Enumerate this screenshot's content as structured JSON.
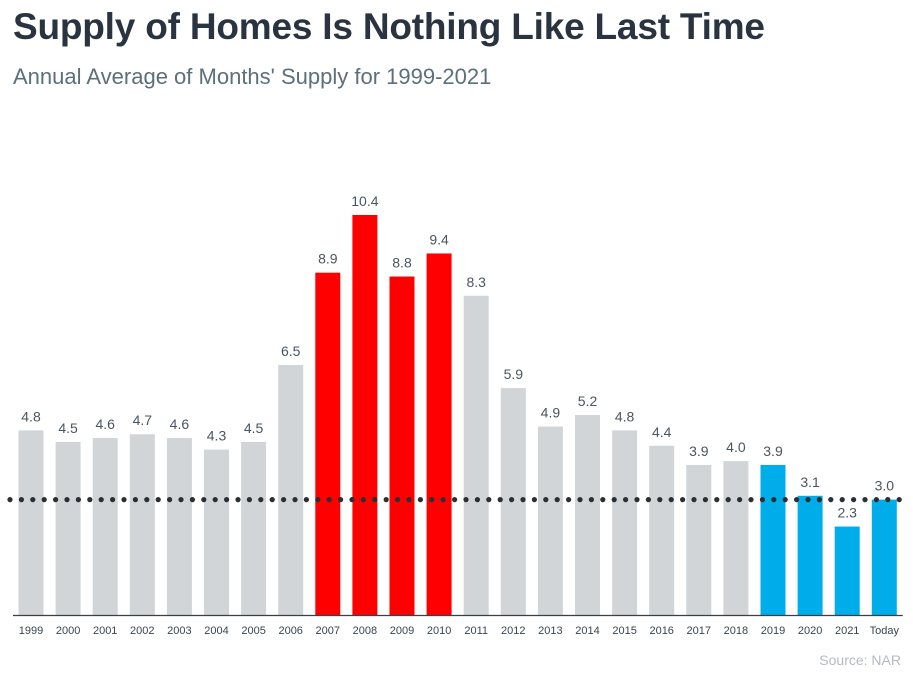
{
  "title": "Supply of Homes Is Nothing Like Last Time",
  "subtitle": "Annual Average of Months' Supply for 1999-2021",
  "source": "Source: NAR",
  "colors": {
    "default": "#d1d5d8",
    "peak": "#ff0000",
    "recent": "#00adeb",
    "reference_line": "#2a2f33",
    "axis": "#3a3f44"
  },
  "chart_data": {
    "type": "bar",
    "title": "Supply of Homes Is Nothing Like Last Time",
    "subtitle": "Annual Average of Months' Supply for 1999-2021",
    "categories": [
      "1999",
      "2000",
      "2001",
      "2002",
      "2003",
      "2004",
      "2005",
      "2006",
      "2007",
      "2008",
      "2009",
      "2010",
      "2011",
      "2012",
      "2013",
      "2014",
      "2015",
      "2016",
      "2017",
      "2018",
      "2019",
      "2020",
      "2021",
      "Today"
    ],
    "values": [
      4.8,
      4.5,
      4.6,
      4.7,
      4.6,
      4.3,
      4.5,
      6.5,
      8.9,
      10.4,
      8.8,
      9.4,
      8.3,
      5.9,
      4.9,
      5.2,
      4.8,
      4.4,
      3.9,
      4.0,
      3.9,
      3.1,
      2.3,
      3.0
    ],
    "bar_groups": [
      "default",
      "default",
      "default",
      "default",
      "default",
      "default",
      "default",
      "default",
      "peak",
      "peak",
      "peak",
      "peak",
      "default",
      "default",
      "default",
      "default",
      "default",
      "default",
      "default",
      "default",
      "recent",
      "recent",
      "recent",
      "recent"
    ],
    "reference_line": {
      "value": 3.0,
      "style": "dotted"
    },
    "ylim": [
      0,
      10.4
    ],
    "xlabel": "",
    "ylabel": "",
    "grid": false,
    "data_labels": true
  }
}
